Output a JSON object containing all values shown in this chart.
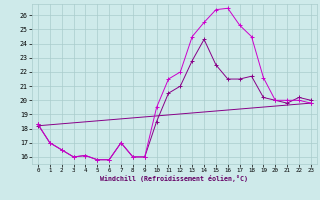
{
  "xlabel": "Windchill (Refroidissement éolien,°C)",
  "bg_color": "#ceeaea",
  "grid_color": "#aacccc",
  "line_color_bright": "#cc00cc",
  "line_color_dark": "#880088",
  "xlim": [
    -0.5,
    23.5
  ],
  "ylim": [
    15.5,
    26.8
  ],
  "yticks": [
    16,
    17,
    18,
    19,
    20,
    21,
    22,
    23,
    24,
    25,
    26
  ],
  "xticks": [
    0,
    1,
    2,
    3,
    4,
    5,
    6,
    7,
    8,
    9,
    10,
    11,
    12,
    13,
    14,
    15,
    16,
    17,
    18,
    19,
    20,
    21,
    22,
    23
  ],
  "line1_x": [
    0,
    1,
    2,
    3,
    4,
    5,
    6,
    7,
    8,
    9,
    10,
    11,
    12,
    13,
    14,
    15,
    16,
    17,
    18,
    19,
    20,
    21,
    22,
    23
  ],
  "line1_y": [
    18.3,
    17.0,
    16.5,
    16.0,
    16.1,
    15.8,
    15.8,
    17.0,
    16.0,
    16.0,
    18.5,
    20.5,
    21.0,
    22.8,
    24.3,
    22.5,
    21.5,
    21.5,
    21.7,
    20.2,
    20.0,
    19.8,
    20.2,
    20.0
  ],
  "line2_x": [
    0,
    1,
    2,
    3,
    4,
    5,
    6,
    7,
    8,
    9,
    10,
    11,
    12,
    13,
    14,
    15,
    16,
    17,
    18,
    19,
    20,
    21,
    22,
    23
  ],
  "line2_y": [
    18.3,
    17.0,
    16.5,
    16.0,
    16.1,
    15.8,
    15.8,
    17.0,
    16.0,
    16.0,
    19.5,
    21.5,
    22.0,
    24.5,
    25.5,
    26.4,
    26.5,
    25.3,
    24.5,
    21.6,
    20.0,
    20.0,
    20.0,
    19.8
  ],
  "line3_x": [
    0,
    23
  ],
  "line3_y": [
    18.2,
    19.8
  ]
}
